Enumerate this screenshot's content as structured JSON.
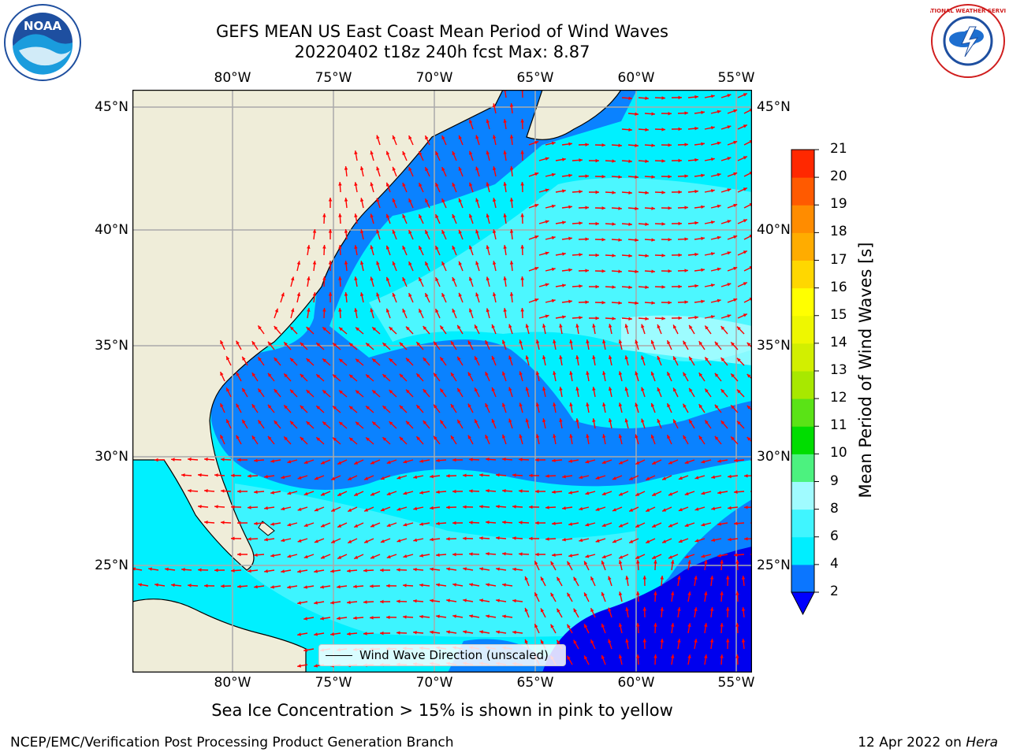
{
  "title": {
    "line1": "GEFS MEAN US East Coast Mean Period of Wind Waves",
    "line2": "20220402 t18z 240h fcst   Max: 8.87"
  },
  "logos": {
    "left_icon": "noaa-logo-icon",
    "left_text": "NOAA",
    "right_icon": "national-weather-service-logo-icon",
    "right_text": "NATIONAL WEATHER SERVICE"
  },
  "map": {
    "lon_labels": [
      "80°W",
      "75°W",
      "70°W",
      "65°W",
      "60°W",
      "55°W"
    ],
    "lat_labels": [
      "45°N",
      "40°N",
      "35°N",
      "30°N",
      "25°N"
    ],
    "legend_label": "Wind Wave Direction (unscaled)",
    "arrow_color": "#ff0000",
    "land_color": "#efedd9"
  },
  "colorbar": {
    "label": "Mean Period of Wind Waves [s]",
    "ticks": [
      "2",
      "4",
      "6",
      "8",
      "9",
      "10",
      "11",
      "12",
      "13",
      "14",
      "15",
      "16",
      "17",
      "18",
      "19",
      "20",
      "21"
    ],
    "colors": [
      "#0b76ff",
      "#00eeff",
      "#40f5ff",
      "#a0fbff",
      "#4cf27f",
      "#00dd00",
      "#5ae316",
      "#a8e800",
      "#d2ef00",
      "#eef700",
      "#ffff00",
      "#ffd700",
      "#ffac00",
      "#ff8c00",
      "#ff5a00",
      "#ff2800",
      "#ff0000"
    ],
    "under_color": "#0000ff"
  },
  "caption": "Sea Ice Concentration > 15% is shown in pink to yellow",
  "footer": {
    "left": "NCEP/EMC/Verification Post Processing Product Generation Branch",
    "right_prefix": "12 Apr 2022 on",
    "right_host": "Hera"
  }
}
